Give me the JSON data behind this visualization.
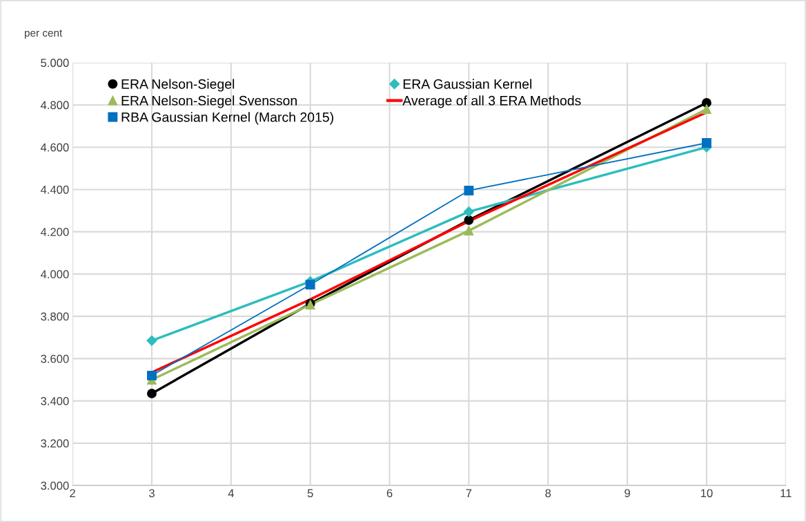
{
  "chart_data": {
    "type": "line",
    "ylabel": "per cent",
    "x": [
      3,
      5,
      7,
      10
    ],
    "xlim": [
      2,
      11
    ],
    "xticks": [
      2,
      3,
      4,
      5,
      6,
      7,
      8,
      9,
      10,
      11
    ],
    "ylim": [
      3.0,
      5.0
    ],
    "yticks": [
      {
        "value": 3.0,
        "label": "3.000"
      },
      {
        "value": 3.2,
        "label": "3.200"
      },
      {
        "value": 3.4,
        "label": "3.400"
      },
      {
        "value": 3.6,
        "label": "3.600"
      },
      {
        "value": 3.8,
        "label": "3.800"
      },
      {
        "value": 4.0,
        "label": "4.000"
      },
      {
        "value": 4.2,
        "label": "4.200"
      },
      {
        "value": 4.4,
        "label": "4.400"
      },
      {
        "value": 4.6,
        "label": "4.600"
      },
      {
        "value": 4.8,
        "label": "4.800"
      },
      {
        "value": 5.0,
        "label": "5.000"
      }
    ],
    "grid": true,
    "legend": "top left",
    "series": [
      {
        "name": "ERA Nelson-Siegel",
        "color": "#000000",
        "marker": "circle",
        "values": [
          3.435,
          3.86,
          4.255,
          4.81
        ]
      },
      {
        "name": "ERA Gaussian Kernel",
        "color": "#2dbdbd",
        "marker": "diamond",
        "values": [
          3.685,
          3.965,
          4.295,
          4.6
        ]
      },
      {
        "name": "ERA Nelson-Siegel Svensson",
        "color": "#9bbb59",
        "marker": "triangle",
        "values": [
          3.5,
          3.855,
          4.205,
          4.78
        ]
      },
      {
        "name": "Average of all 3 ERA Methods",
        "color": "#ff0000",
        "marker": "none",
        "values": [
          3.535,
          3.88,
          4.25,
          4.765
        ]
      },
      {
        "name": "RBA Gaussian Kernel (March 2015)",
        "color": "#0070c0",
        "marker": "square",
        "values": [
          3.52,
          3.95,
          4.395,
          4.62
        ]
      }
    ]
  }
}
